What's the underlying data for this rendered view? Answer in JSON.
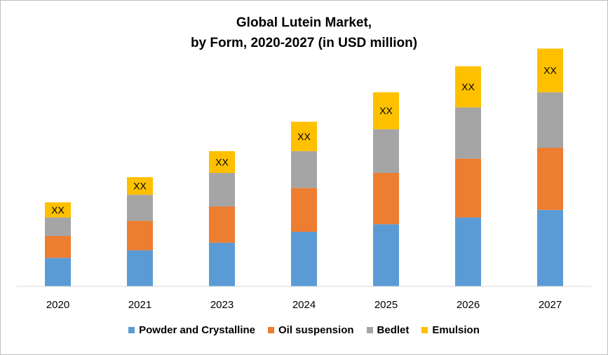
{
  "chart_data": {
    "type": "bar",
    "stacked": true,
    "title_line1": "Global Lutein Market,",
    "title_line2": "by Form, 2020-2027 (in USD million)",
    "categories": [
      "2020",
      "2021",
      "2023",
      "2024",
      "2025",
      "2026",
      "2027"
    ],
    "series": [
      {
        "name": "Powder and Crystalline",
        "color": "#5B9BD5",
        "values": [
          34,
          43,
          52,
          65,
          74,
          82,
          91
        ]
      },
      {
        "name": "Oil suspension",
        "color": "#ED7D31",
        "values": [
          26,
          35,
          43,
          52,
          61,
          70,
          74
        ]
      },
      {
        "name": "Bedlet",
        "color": "#A5A5A5",
        "values": [
          22,
          31,
          40,
          44,
          52,
          61,
          66
        ]
      },
      {
        "name": "Emulsion",
        "color": "#FFC000",
        "values": [
          18,
          21,
          26,
          35,
          44,
          49,
          52
        ]
      }
    ],
    "bar_labels": [
      "XX",
      "XX",
      "XX",
      "XX",
      "XX",
      "XX",
      "XX"
    ],
    "ylim": [
      0,
      300
    ],
    "grid": false,
    "legend_position": "bottom",
    "xlabel": "",
    "ylabel": ""
  }
}
